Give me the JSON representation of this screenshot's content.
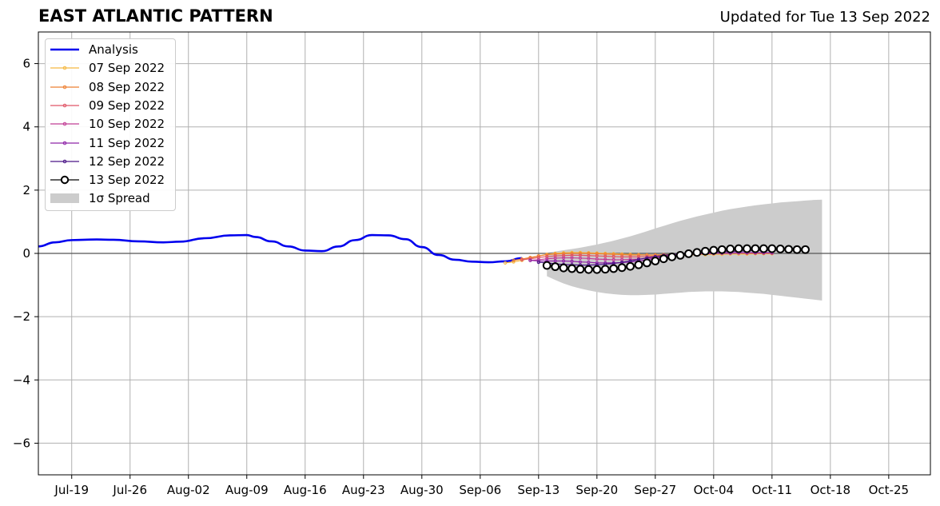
{
  "header": {
    "title": "EAST ATLANTIC PATTERN",
    "updated": "Updated for Tue 13 Sep 2022"
  },
  "chart_data": {
    "type": "line",
    "x_range": [
      "2022-07-15",
      "2022-10-30"
    ],
    "ylim": [
      -7,
      7
    ],
    "y_ticks": [
      -6,
      -4,
      -2,
      0,
      2,
      4,
      6
    ],
    "y_tick_labels": [
      "−6",
      "−4",
      "−2",
      "0",
      "2",
      "4",
      "6"
    ],
    "x_ticks": [
      "2022-07-19",
      "2022-07-26",
      "2022-08-02",
      "2022-08-09",
      "2022-08-16",
      "2022-08-23",
      "2022-08-30",
      "2022-09-06",
      "2022-09-13",
      "2022-09-20",
      "2022-09-27",
      "2022-10-04",
      "2022-10-11",
      "2022-10-18",
      "2022-10-25"
    ],
    "x_tick_labels": [
      "Jul-19",
      "Jul-26",
      "Aug-02",
      "Aug-09",
      "Aug-16",
      "Aug-23",
      "Aug-30",
      "Sep-06",
      "Sep-13",
      "Sep-20",
      "Sep-27",
      "Oct-04",
      "Oct-11",
      "Oct-18",
      "Oct-25"
    ],
    "grid": true,
    "legend_position": "top-left",
    "zero_line": true,
    "analysis": {
      "name": "Analysis",
      "color": "#0000ee",
      "points": [
        [
          "2022-07-15",
          0.22
        ],
        [
          "2022-07-17",
          0.35
        ],
        [
          "2022-07-19",
          0.42
        ],
        [
          "2022-07-22",
          0.44
        ],
        [
          "2022-07-24",
          0.43
        ],
        [
          "2022-07-27",
          0.38
        ],
        [
          "2022-07-30",
          0.35
        ],
        [
          "2022-08-01",
          0.37
        ],
        [
          "2022-08-04",
          0.48
        ],
        [
          "2022-08-07",
          0.57
        ],
        [
          "2022-08-09",
          0.58
        ],
        [
          "2022-08-10",
          0.52
        ],
        [
          "2022-08-12",
          0.38
        ],
        [
          "2022-08-14",
          0.22
        ],
        [
          "2022-08-16",
          0.09
        ],
        [
          "2022-08-18",
          0.07
        ],
        [
          "2022-08-20",
          0.22
        ],
        [
          "2022-08-22",
          0.42
        ],
        [
          "2022-08-24",
          0.58
        ],
        [
          "2022-08-26",
          0.57
        ],
        [
          "2022-08-28",
          0.45
        ],
        [
          "2022-08-30",
          0.2
        ],
        [
          "2022-09-01",
          -0.05
        ],
        [
          "2022-09-03",
          -0.2
        ],
        [
          "2022-09-05",
          -0.26
        ],
        [
          "2022-09-07",
          -0.28
        ],
        [
          "2022-09-09",
          -0.25
        ],
        [
          "2022-09-11",
          -0.15
        ]
      ]
    },
    "forecasts": [
      {
        "name": "07 Sep 2022",
        "color": "#f5b840",
        "start": "2022-09-09",
        "values": [
          -0.3,
          -0.27,
          -0.22,
          -0.15,
          -0.08,
          -0.03,
          0.0,
          0.02,
          0.03,
          0.03,
          0.02,
          0.01,
          0.0,
          -0.01,
          -0.02,
          -0.03,
          -0.04,
          -0.05,
          -0.06,
          -0.06,
          -0.06,
          -0.05,
          -0.05,
          -0.04,
          -0.04,
          -0.03,
          -0.03,
          -0.02,
          -0.02,
          -0.02,
          -0.01,
          -0.01,
          -0.01
        ]
      },
      {
        "name": "08 Sep 2022",
        "color": "#ee8033",
        "start": "2022-09-10",
        "values": [
          -0.22,
          -0.18,
          -0.13,
          -0.08,
          -0.04,
          -0.02,
          -0.01,
          0.0,
          0.0,
          0.0,
          -0.01,
          -0.02,
          -0.03,
          -0.04,
          -0.05,
          -0.05,
          -0.05,
          -0.05,
          -0.04,
          -0.03,
          -0.02,
          -0.01,
          0.0,
          0.0,
          0.01,
          0.01,
          0.01,
          0.01,
          0.0,
          0.0,
          0.0,
          0.0
        ]
      },
      {
        "name": "09 Sep 2022",
        "color": "#e05668",
        "start": "2022-09-11",
        "values": [
          -0.2,
          -0.17,
          -0.13,
          -0.1,
          -0.08,
          -0.07,
          -0.06,
          -0.06,
          -0.07,
          -0.08,
          -0.09,
          -0.1,
          -0.11,
          -0.11,
          -0.11,
          -0.1,
          -0.09,
          -0.07,
          -0.05,
          -0.03,
          -0.02,
          -0.01,
          0.0,
          0.01,
          0.01,
          0.02,
          0.02,
          0.02,
          0.02,
          0.02,
          0.01
        ]
      },
      {
        "name": "10 Sep 2022",
        "color": "#c13e95",
        "start": "2022-09-12",
        "values": [
          -0.22,
          -0.2,
          -0.17,
          -0.15,
          -0.14,
          -0.14,
          -0.15,
          -0.16,
          -0.18,
          -0.19,
          -0.2,
          -0.2,
          -0.19,
          -0.18,
          -0.16,
          -0.13,
          -0.1,
          -0.07,
          -0.05,
          -0.03,
          -0.02,
          -0.01,
          0.0,
          0.01,
          0.01,
          0.02,
          0.02,
          0.02,
          0.02,
          0.02
        ]
      },
      {
        "name": "11 Sep 2022",
        "color": "#8e24a8",
        "start": "2022-09-12",
        "values": [
          -0.22,
          -0.24,
          -0.24,
          -0.24,
          -0.24,
          -0.25,
          -0.27,
          -0.28,
          -0.3,
          -0.3,
          -0.3,
          -0.29,
          -0.27,
          -0.24,
          -0.2,
          -0.15,
          -0.11,
          -0.08,
          -0.05,
          -0.03,
          -0.02,
          -0.01,
          0.0,
          0.01,
          0.01,
          0.02,
          0.02,
          0.02,
          0.02,
          0.02
        ]
      },
      {
        "name": "12 Sep 2022",
        "color": "#4a1486",
        "start": "2022-09-13",
        "values": [
          -0.28,
          -0.3,
          -0.33,
          -0.35,
          -0.36,
          -0.37,
          -0.37,
          -0.36,
          -0.34,
          -0.32,
          -0.28,
          -0.24,
          -0.19,
          -0.14,
          -0.1,
          -0.06,
          -0.03,
          -0.01,
          0.01,
          0.02,
          0.03,
          0.04,
          0.05,
          0.06,
          0.07,
          0.08,
          0.09,
          0.1,
          0.1
        ]
      },
      {
        "name": "13 Sep 2022",
        "color": "#000000",
        "start": "2022-09-14",
        "values": [
          -0.38,
          -0.42,
          -0.46,
          -0.48,
          -0.5,
          -0.51,
          -0.51,
          -0.5,
          -0.48,
          -0.45,
          -0.41,
          -0.36,
          -0.3,
          -0.24,
          -0.17,
          -0.11,
          -0.06,
          -0.01,
          0.03,
          0.07,
          0.1,
          0.12,
          0.14,
          0.15,
          0.15,
          0.15,
          0.15,
          0.15,
          0.14,
          0.13,
          0.12,
          0.12
        ]
      }
    ],
    "spread": {
      "name": "1σ Spread",
      "color": "#cccccc",
      "start": "2022-09-14",
      "upper": [
        0.02,
        0.06,
        0.1,
        0.14,
        0.18,
        0.23,
        0.28,
        0.34,
        0.4,
        0.47,
        0.54,
        0.62,
        0.7,
        0.79,
        0.87,
        0.95,
        1.03,
        1.1,
        1.17,
        1.23,
        1.29,
        1.35,
        1.4,
        1.44,
        1.48,
        1.52,
        1.55,
        1.58,
        1.61,
        1.63,
        1.65,
        1.67,
        1.69,
        1.7
      ],
      "lower": [
        -0.72,
        -0.84,
        -0.95,
        -1.04,
        -1.11,
        -1.17,
        -1.22,
        -1.26,
        -1.29,
        -1.31,
        -1.32,
        -1.32,
        -1.31,
        -1.3,
        -1.28,
        -1.26,
        -1.24,
        -1.22,
        -1.21,
        -1.2,
        -1.2,
        -1.2,
        -1.21,
        -1.22,
        -1.24,
        -1.26,
        -1.28,
        -1.31,
        -1.34,
        -1.37,
        -1.4,
        -1.43,
        -1.46,
        -1.49
      ]
    }
  }
}
